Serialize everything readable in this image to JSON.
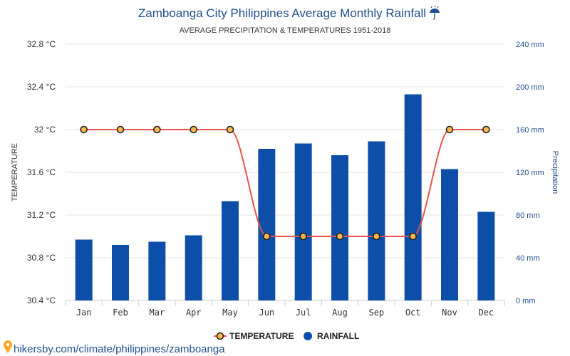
{
  "chart_data": {
    "type": "bar",
    "title": "Zamboanga City Philippines Average Monthly Rainfall",
    "title_icon": "umbrella-icon",
    "subtitle": "AVERAGE PRECIPITATION & TEMPERATURES 1951-2018",
    "categories": [
      "Jan",
      "Feb",
      "Mar",
      "Apr",
      "May",
      "Jun",
      "Jul",
      "Aug",
      "Sep",
      "Oct",
      "Nov",
      "Dec"
    ],
    "series": [
      {
        "name": "TEMPERATURE",
        "type": "line",
        "axis": "left",
        "color": "#e8534a",
        "marker_fill": "#ffb74d",
        "values": [
          32,
          32,
          32,
          32,
          32,
          31,
          31,
          31,
          31,
          31,
          32,
          32
        ]
      },
      {
        "name": "RAINFALL",
        "type": "bar",
        "axis": "right",
        "color": "#0d4fa8",
        "values": [
          57,
          52,
          55,
          61,
          93,
          142,
          147,
          136,
          149,
          193,
          123,
          83
        ]
      }
    ],
    "ylabel_left": "TEMPERATURE",
    "ylabel_right": "Precipitation",
    "ylim_left": [
      30.4,
      32.8
    ],
    "yticks_left": [
      "32.8 °C",
      "32.4 °C",
      "32 °C",
      "31.6 °C",
      "31.2 °C",
      "30.8 °C",
      "30.4 °C"
    ],
    "ylim_right": [
      0,
      240
    ],
    "yticks_right": [
      "240 mm",
      "200 mm",
      "160 mm",
      "120 mm",
      "80 mm",
      "40 mm",
      "0 mm"
    ],
    "grid": true,
    "legend_position": "bottom-center"
  },
  "source": {
    "text": "hikersby.com/climate/philippines/zamboanga",
    "icon": "map-pin-icon"
  }
}
